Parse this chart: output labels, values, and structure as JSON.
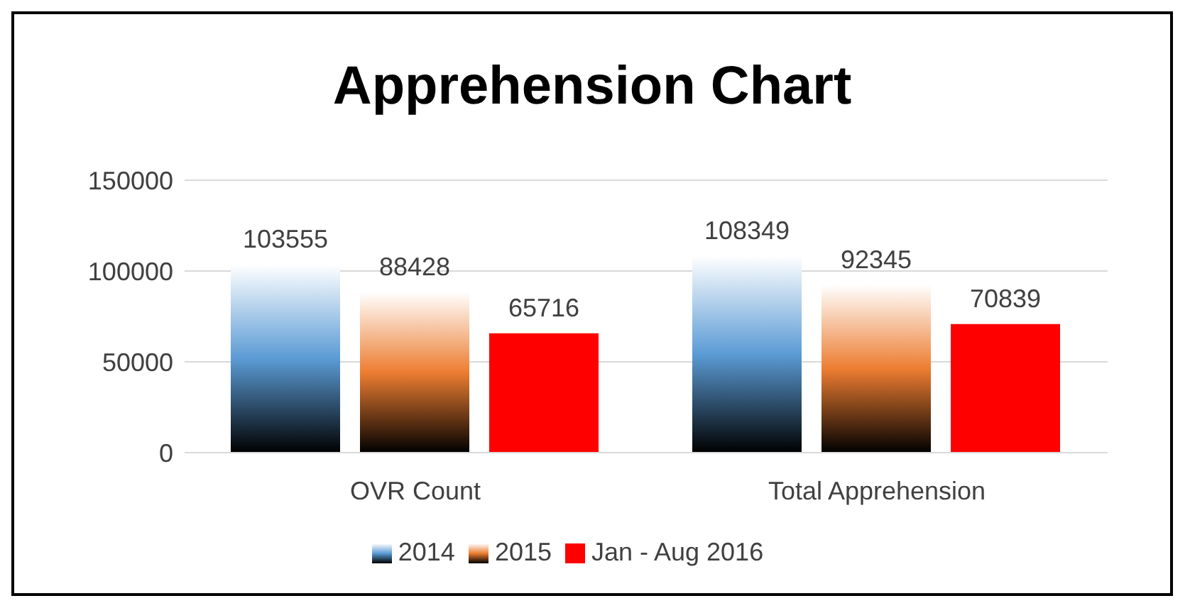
{
  "chart_data": {
    "type": "bar",
    "title": "Apprehension Chart",
    "categories": [
      "OVR Count",
      "Total Apprehension"
    ],
    "series": [
      {
        "name": "2014",
        "color": "#5b9bd5",
        "values": [
          103555,
          108349
        ]
      },
      {
        "name": "2015",
        "color": "#ed7d31",
        "values": [
          88428,
          92345
        ]
      },
      {
        "name": "Jan - Aug 2016",
        "color": "#ff0000",
        "values": [
          65716,
          70839
        ]
      }
    ],
    "ylim": [
      0,
      150000
    ],
    "yticks": [
      0,
      50000,
      100000,
      150000
    ],
    "grid": "y",
    "legend": "bottom",
    "data_labels": true
  }
}
